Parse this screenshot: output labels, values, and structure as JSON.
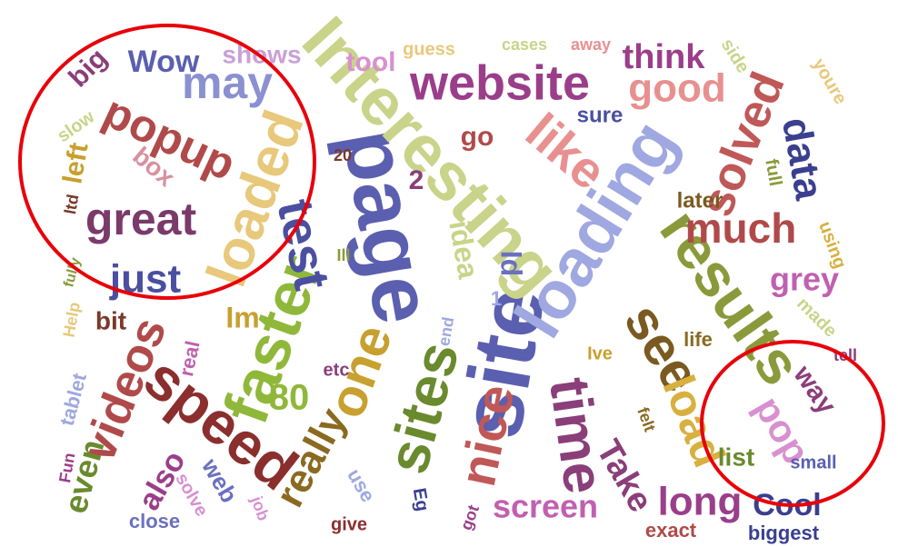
{
  "words": [
    {
      "text": "site",
      "color": "#5A5FB0"
    },
    {
      "text": "page",
      "color": "#5A5FB0"
    },
    {
      "text": "Interesting",
      "color": "#C9D48A"
    },
    {
      "text": "loading",
      "color": "#9FA8E0"
    },
    {
      "text": "results",
      "color": "#8A9A3A"
    },
    {
      "text": "faster",
      "color": "#8FB83A"
    },
    {
      "text": "speed",
      "color": "#8B2E2E"
    },
    {
      "text": "website",
      "color": "#9B3E8A"
    },
    {
      "text": "time",
      "color": "#8A3E7A"
    },
    {
      "text": "sites",
      "color": "#6A8A2E"
    },
    {
      "text": "loaded",
      "color": "#E8C87A"
    },
    {
      "text": "great",
      "color": "#7A3A6A"
    },
    {
      "text": "popup",
      "color": "#B04A4A"
    },
    {
      "text": "videos",
      "color": "#B04A4A"
    },
    {
      "text": "nice",
      "color": "#C05858"
    },
    {
      "text": "like",
      "color": "#E89090"
    },
    {
      "text": "one",
      "color": "#C8A030"
    },
    {
      "text": "see",
      "color": "#7A5A20"
    },
    {
      "text": "much",
      "color": "#B04A4A"
    },
    {
      "text": "solved",
      "color": "#C05858"
    },
    {
      "text": "test",
      "color": "#4A4FA0"
    },
    {
      "text": "data",
      "color": "#3A3F90"
    },
    {
      "text": "load",
      "color": "#D8B040"
    },
    {
      "text": "good",
      "color": "#E89090"
    },
    {
      "text": "just",
      "color": "#4A4FA0"
    },
    {
      "text": "may",
      "color": "#8A90D0"
    },
    {
      "text": "long",
      "color": "#9B3E8A"
    },
    {
      "text": "screen",
      "color": "#C060B0"
    },
    {
      "text": "really",
      "color": "#8A6A20"
    },
    {
      "text": "Take",
      "color": "#8A3E7A"
    },
    {
      "text": "pop",
      "color": "#D890D0"
    },
    {
      "text": "Cool",
      "color": "#3A3F90"
    },
    {
      "text": "grey",
      "color": "#C060B0"
    },
    {
      "text": "think",
      "color": "#9B3E8A"
    },
    {
      "text": "Wow",
      "color": "#5A5FB0"
    },
    {
      "text": "shows",
      "color": "#C9A0D8"
    },
    {
      "text": "big",
      "color": "#8A3E7A"
    },
    {
      "text": "left",
      "color": "#C8A030"
    },
    {
      "text": "box",
      "color": "#D890A0"
    },
    {
      "text": "even",
      "color": "#6A8A2E"
    },
    {
      "text": "also",
      "color": "#9B3E8A"
    },
    {
      "text": "bit",
      "color": "#7A3A2A"
    },
    {
      "text": "Im",
      "color": "#C8A030"
    },
    {
      "text": "80",
      "color": "#8FB83A"
    },
    {
      "text": "idea",
      "color": "#C9D48A"
    },
    {
      "text": "Id",
      "color": "#6A70C0"
    },
    {
      "text": "tool",
      "color": "#D890D0"
    },
    {
      "text": "guess",
      "color": "#E8C87A"
    },
    {
      "text": "cases",
      "color": "#C9D48A"
    },
    {
      "text": "away",
      "color": "#E89090"
    },
    {
      "text": "sure",
      "color": "#4A4FA0"
    },
    {
      "text": "go",
      "color": "#B04A4A"
    },
    {
      "text": "way",
      "color": "#8A3E7A"
    },
    {
      "text": "list",
      "color": "#6A8A2E"
    },
    {
      "text": "small",
      "color": "#5A5FB0"
    },
    {
      "text": "biggest",
      "color": "#3A3F90"
    },
    {
      "text": "exact",
      "color": "#B04A4A"
    },
    {
      "text": "got",
      "color": "#9B3E8A"
    },
    {
      "text": "Eg",
      "color": "#3A3F90"
    },
    {
      "text": "give",
      "color": "#8B2E2E"
    },
    {
      "text": "use",
      "color": "#9FA8E0"
    },
    {
      "text": "job",
      "color": "#D890D0"
    },
    {
      "text": "web",
      "color": "#6A70C0"
    },
    {
      "text": "solve",
      "color": "#D890D0"
    },
    {
      "text": "close",
      "color": "#6A70C0"
    },
    {
      "text": "Fun",
      "color": "#9B3E8A"
    },
    {
      "text": "tablet",
      "color": "#9FA8E0"
    },
    {
      "text": "real",
      "color": "#C060B0"
    },
    {
      "text": "etc",
      "color": "#8A3E7A"
    },
    {
      "text": "end",
      "color": "#9FA8E0"
    },
    {
      "text": "Ive",
      "color": "#C8A030"
    },
    {
      "text": "life",
      "color": "#8A6A20"
    },
    {
      "text": "made",
      "color": "#C9D48A"
    },
    {
      "text": "tell",
      "color": "#8A3E7A"
    },
    {
      "text": "felt",
      "color": "#8A6A20"
    },
    {
      "text": "later",
      "color": "#7A5A20"
    },
    {
      "text": "full",
      "color": "#8A9A3A"
    },
    {
      "text": "using",
      "color": "#D8B040"
    },
    {
      "text": "side",
      "color": "#C9D48A"
    },
    {
      "text": "youre",
      "color": "#E8C87A"
    },
    {
      "text": "slow",
      "color": "#C9D48A"
    },
    {
      "text": "ltd",
      "color": "#7A3A2A"
    },
    {
      "text": "fully",
      "color": "#8A9A3A"
    },
    {
      "text": "Ill",
      "color": "#8A9A3A"
    },
    {
      "text": "20",
      "color": "#7A3A2A"
    },
    {
      "text": "2",
      "color": "#8A3E7A"
    },
    {
      "text": "1",
      "color": "#9FA8E0"
    },
    {
      "text": "Help",
      "color": "#E8C87A"
    }
  ],
  "annotations": [
    {
      "shape": "circle",
      "color": "#E8000A"
    },
    {
      "shape": "circle",
      "color": "#E8000A"
    }
  ]
}
